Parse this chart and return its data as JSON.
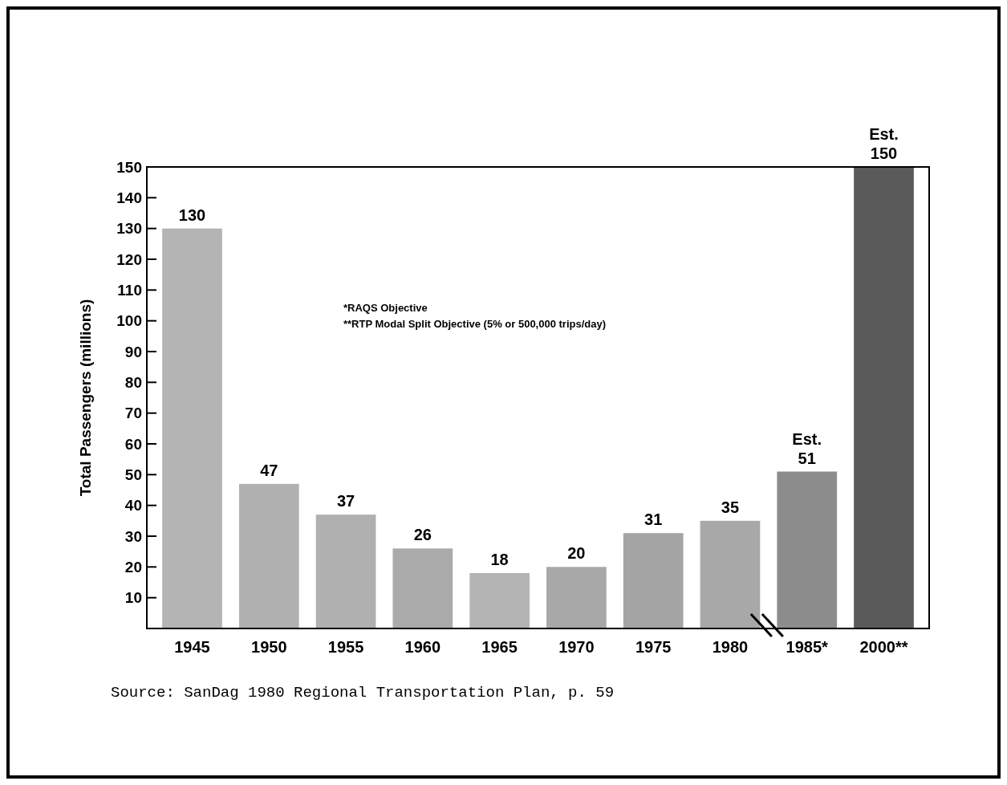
{
  "chart_data": {
    "type": "bar",
    "ylabel": "Total Passengers (millions)",
    "categories": [
      "1945",
      "1950",
      "1955",
      "1960",
      "1965",
      "1970",
      "1975",
      "1980",
      "1985*",
      "2000**"
    ],
    "values": [
      130,
      47,
      37,
      26,
      18,
      20,
      31,
      35,
      51,
      150
    ],
    "value_labels": [
      "130",
      "47",
      "37",
      "26",
      "18",
      "20",
      "31",
      "35",
      "Est. 51",
      "Est. 150"
    ],
    "colors": [
      "#b4b4b4",
      "#b0b0b0",
      "#b0b0b0",
      "#aaaaaa",
      "#b4b4b4",
      "#a8a8a8",
      "#a4a4a4",
      "#a8a8a8",
      "#8c8c8c",
      "#5a5a5a"
    ],
    "ylim": [
      0,
      150
    ],
    "yticks": [
      10,
      20,
      30,
      40,
      50,
      60,
      70,
      80,
      90,
      100,
      110,
      120,
      130,
      140,
      150
    ],
    "grid": false,
    "annotations": [
      "*RAQS Objective",
      "**RTP Modal Split Objective (5% or 500,000 trips/day)",
      "Source:  SanDag 1980 Regional Transportation Plan, p. 59"
    ]
  }
}
